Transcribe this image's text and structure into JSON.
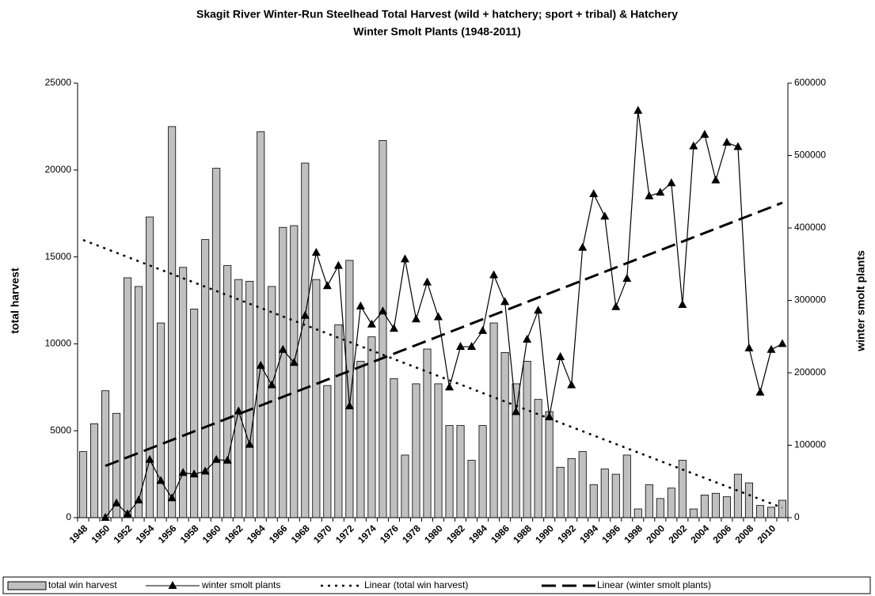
{
  "chart_data": {
    "type": "bar",
    "title": [
      "Skagit River Winter-Run Steelhead Total Harvest (wild + hatchery; sport + tribal) & Hatchery",
      "Winter Smolt Plants (1948-2011)"
    ],
    "y_label": "total harvest",
    "y2_label": "winter smolt plants",
    "categories": [
      "1948",
      null,
      "1950",
      null,
      "1952",
      null,
      "1954",
      null,
      "1956",
      null,
      "1958",
      null,
      "1960",
      null,
      "1962",
      null,
      "1964",
      null,
      "1966",
      null,
      "1968",
      null,
      "1970",
      null,
      "1972",
      null,
      "1974",
      null,
      "1976",
      null,
      "1978",
      null,
      "1980",
      null,
      "1982",
      null,
      "1984",
      null,
      "1986",
      null,
      "1988",
      null,
      "1990",
      null,
      "1992",
      null,
      "1994",
      null,
      "1996",
      null,
      "1998",
      null,
      "2000",
      null,
      "2002",
      null,
      "2004",
      null,
      "2006",
      null,
      "2008",
      null,
      "2010",
      null
    ],
    "series": [
      {
        "name": "total win harvest",
        "type": "bar",
        "color": "#c0c0c0",
        "trendline": "Linear (total win harvest)",
        "trendline_style": "dotted",
        "values": [
          3800,
          5400,
          7300,
          6000,
          13800,
          13300,
          17300,
          11200,
          22500,
          14400,
          12000,
          16000,
          20100,
          14500,
          13700,
          13600,
          22200,
          13300,
          16700,
          16800,
          20400,
          13700,
          7600,
          11100,
          14800,
          9000,
          10400,
          21700,
          8000,
          3600,
          7700,
          9700,
          7700,
          5300,
          5300,
          3300,
          5300,
          11200,
          9500,
          7700,
          9000,
          6800,
          6100,
          2900,
          3400,
          3800,
          1900,
          2800,
          2500,
          3600,
          500,
          1900,
          1100,
          1700,
          3300,
          500,
          1300,
          1400,
          1200,
          2500,
          2000,
          700,
          600,
          1000
        ]
      },
      {
        "name": "winter smolt plants",
        "type": "line",
        "axis": "y2",
        "color": "#000000",
        "trendline": "Linear (winter smolt plants)",
        "trendline_style": "dashed",
        "values": [
          null,
          null,
          0,
          20000,
          5000,
          24000,
          80000,
          51000,
          27000,
          62000,
          60000,
          64000,
          80000,
          79000,
          147000,
          101000,
          210000,
          183000,
          232000,
          214000,
          279000,
          366000,
          320000,
          348000,
          154000,
          292000,
          267000,
          285000,
          261000,
          357000,
          274000,
          325000,
          277000,
          180000,
          236000,
          236000,
          258000,
          335000,
          298000,
          146000,
          246000,
          286000,
          139000,
          222000,
          183000,
          373000,
          447000,
          416000,
          291000,
          330000,
          562000,
          444000,
          449000,
          462000,
          294000,
          513000,
          529000,
          466000,
          518000,
          512000,
          234000,
          173000,
          232000,
          240000
        ]
      }
    ],
    "ylim": [
      0,
      25000
    ],
    "yticks": [
      0,
      5000,
      10000,
      15000,
      20000,
      25000
    ],
    "y2lim": [
      0,
      600000
    ],
    "y2ticks": [
      0,
      100000,
      200000,
      300000,
      400000,
      500000,
      600000
    ],
    "legend": "bottom"
  }
}
